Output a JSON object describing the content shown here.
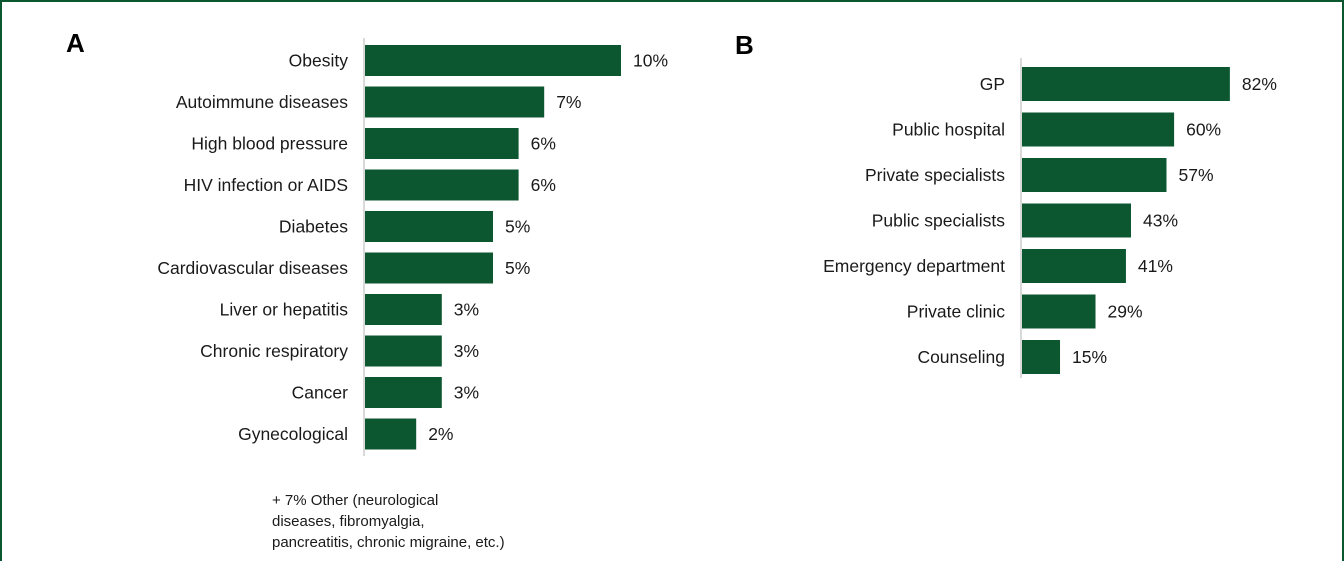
{
  "colors": {
    "bar": "#0c5630",
    "frame": "#0c5630",
    "axis": "#b3b3b3"
  },
  "chart_data": [
    {
      "type": "bar",
      "orientation": "horizontal",
      "panel_label": "A",
      "categories": [
        "Obesity",
        "Autoimmune diseases",
        "High blood pressure",
        "HIV infection or AIDS",
        "Diabetes",
        "Cardiovascular diseases",
        "Liver or hepatitis",
        "Chronic respiratory ",
        "Cancer",
        "Gynecological"
      ],
      "values": [
        10,
        7,
        6,
        6,
        5,
        5,
        3,
        3,
        3,
        2
      ],
      "value_labels": [
        "10%",
        "7%",
        "6%",
        "6%",
        "5%",
        "5%",
        "3%",
        "3%",
        "3%",
        "2%"
      ],
      "note_lines": [
        "+ 7% Other (neurological",
        "diseases, fibromyalgia,",
        "pancreatitis, chronic migraine, etc.)"
      ]
    },
    {
      "type": "bar",
      "orientation": "horizontal",
      "panel_label": "B",
      "categories": [
        "GP",
        "Public hospital",
        "Private specialists",
        "Public specialists",
        "Emergency department",
        "Private clinic",
        "Counseling"
      ],
      "values": [
        82,
        60,
        57,
        43,
        41,
        29,
        15
      ],
      "value_labels": [
        "82%",
        "60%",
        "57%",
        "43%",
        "41%",
        "29%",
        "15%"
      ]
    }
  ]
}
